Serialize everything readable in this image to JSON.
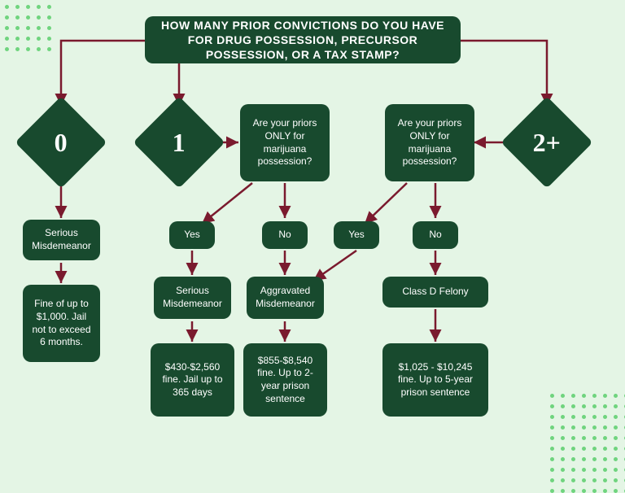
{
  "type": "flowchart",
  "background_color": "#e4f5e5",
  "node_color": "#184a2e",
  "node_text_color": "#ffffff",
  "arrow_color": "#7a1a2e",
  "dot_color": "#6fd47e",
  "title_fontsize": 14,
  "body_fontsize": 12,
  "diamond_fontsize": 32,
  "nodes": {
    "title": "How many prior convictions do you have for drug possession, precursor possession,  or  a tax stamp?",
    "d0": "0",
    "d1": "1",
    "d2": "2+",
    "q1": "Are your priors ONLY for marijuana possession?",
    "q2": "Are your priors ONLY for marijuana possession?",
    "sm1": "Serious Misdemeanor",
    "sm1_detail": "Fine of up to $1,000.  Jail not to exceed 6 months.",
    "yes1": "Yes",
    "no1": "No",
    "yes2": "Yes",
    "no2": "No",
    "sm2": "Serious Misdemeanor",
    "sm2_detail": "$430-$2,560 fine.  Jail up to 365 days",
    "am": "Aggravated Misdemeanor",
    "am_detail": "$855-$8,540 fine.  Up to 2-year prison sentence",
    "cdf": "Class D Felony",
    "cdf_detail": "$1,025 - $10,245 fine.  Up to 5-year prison sentence"
  }
}
